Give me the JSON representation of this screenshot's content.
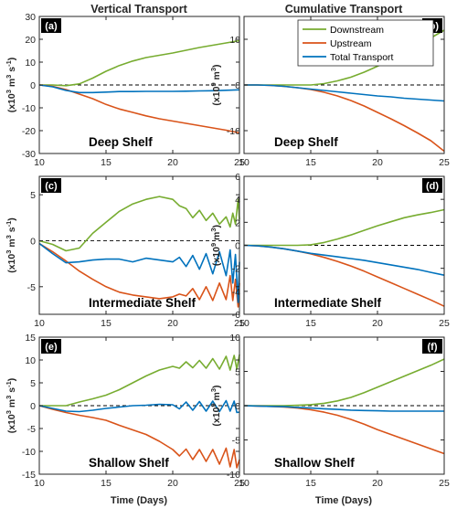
{
  "figure": {
    "col_titles": [
      "Vertical Transport",
      "Cumulative Transport"
    ],
    "xlabel": "Time (Days)",
    "legend": [
      "Downstream",
      "Upstream",
      "Total Transport"
    ]
  },
  "colors": {
    "downstream": "#77AC30",
    "upstream": "#D95319",
    "total": "#0072BD",
    "zero_line": "#000000",
    "frame": "#262626"
  },
  "chart_data": [
    {
      "type": "line",
      "panel": "(a)",
      "label": "Deep Shelf",
      "ylabel": "(x10^3 m^3 s^-1)",
      "xlim": [
        10,
        25
      ],
      "ylim": [
        -30,
        30
      ],
      "xticks": [
        10,
        15,
        20,
        25
      ],
      "yticks": [
        -30,
        -20,
        -10,
        0,
        10,
        20,
        30
      ],
      "x": [
        10,
        11,
        12,
        13,
        14,
        15,
        16,
        17,
        18,
        19,
        20,
        21,
        22,
        23,
        24,
        25
      ],
      "series": [
        {
          "name": "Downstream",
          "values": [
            0,
            0,
            -0.3,
            0.5,
            3,
            6,
            8.5,
            10.5,
            12,
            13,
            14,
            15.2,
            16.4,
            17.4,
            18.4,
            19.4
          ]
        },
        {
          "name": "Upstream",
          "values": [
            0,
            -0.6,
            -2,
            -4,
            -6,
            -8.5,
            -10.5,
            -12,
            -13.5,
            -14.8,
            -15.8,
            -16.8,
            -17.8,
            -18.8,
            -19.8,
            -21
          ]
        },
        {
          "name": "Total Transport",
          "values": [
            0,
            -0.8,
            -2.4,
            -3.3,
            -3.3,
            -3.1,
            -2.9,
            -2.9,
            -2.8,
            -2.8,
            -2.8,
            -2.7,
            -2.6,
            -2.5,
            -2.3,
            -2.1
          ]
        }
      ]
    },
    {
      "type": "line",
      "panel": "(b)",
      "label": "Deep Shelf",
      "ylabel": "(x10^9 m^3)",
      "xlim": [
        10,
        25
      ],
      "ylim": [
        -15,
        15
      ],
      "xticks": [
        10,
        15,
        20,
        25
      ],
      "yticks": [
        -10,
        0,
        10
      ],
      "x": [
        10,
        11,
        12,
        13,
        14,
        15,
        16,
        17,
        18,
        19,
        20,
        21,
        22,
        23,
        24,
        25
      ],
      "series": [
        {
          "name": "Downstream",
          "values": [
            0,
            0,
            0,
            0,
            0,
            0,
            0.3,
            0.9,
            1.7,
            2.8,
            4.1,
            5.6,
            7.1,
            8.7,
            10.3,
            12
          ]
        },
        {
          "name": "Upstream",
          "values": [
            0,
            0,
            -0.1,
            -0.3,
            -0.6,
            -1,
            -1.6,
            -2.4,
            -3.4,
            -4.6,
            -6,
            -7.4,
            -8.9,
            -10.5,
            -12.2,
            -14.5
          ]
        },
        {
          "name": "Total Transport",
          "values": [
            0,
            0,
            -0.1,
            -0.3,
            -0.6,
            -0.9,
            -1.2,
            -1.5,
            -1.8,
            -2.1,
            -2.4,
            -2.6,
            -2.9,
            -3.1,
            -3.3,
            -3.5
          ]
        }
      ]
    },
    {
      "type": "line",
      "panel": "(c)",
      "label": "Intermediate Shelf",
      "ylabel": "(x10^3 m^3 s^-1)",
      "xlim": [
        10,
        25
      ],
      "ylim": [
        -8,
        7
      ],
      "xticks": [
        10,
        15,
        20,
        25
      ],
      "yticks": [
        -5,
        0,
        5
      ],
      "x": [
        10,
        11,
        12,
        13,
        14,
        15,
        16,
        17,
        18,
        19,
        20,
        20.5,
        21,
        21.5,
        22,
        22.5,
        23,
        23.5,
        24,
        24.3,
        24.5,
        24.7,
        24.9,
        25
      ],
      "series": [
        {
          "name": "Downstream",
          "values": [
            0,
            -0.4,
            -1.1,
            -0.8,
            0.8,
            2,
            3.2,
            4,
            4.5,
            4.8,
            4.5,
            3.8,
            3.5,
            2.5,
            3.3,
            2.2,
            3,
            1.8,
            2.6,
            1.5,
            3,
            1.8,
            4.5,
            2.3
          ]
        },
        {
          "name": "Upstream",
          "values": [
            -0.3,
            -1.2,
            -2.2,
            -3.3,
            -4.2,
            -5,
            -5.6,
            -5.9,
            -6.1,
            -6.3,
            -6.1,
            -5.8,
            -6,
            -5.2,
            -6.4,
            -5,
            -6.5,
            -4.6,
            -6.4,
            -3.8,
            -6.5,
            -4.2,
            -7.2,
            -4.6
          ]
        },
        {
          "name": "Total Transport",
          "values": [
            -0.3,
            -1.4,
            -2.4,
            -2.3,
            -2.1,
            -2,
            -2,
            -2.3,
            -1.9,
            -2.1,
            -2.3,
            -1.8,
            -2.8,
            -1.6,
            -3.1,
            -1.4,
            -3.6,
            -1.2,
            -3.8,
            -1,
            -4.6,
            -1.5,
            -6.7,
            -2.3
          ]
        }
      ]
    },
    {
      "type": "line",
      "panel": "(d)",
      "label": "Intermediate Shelf",
      "ylabel": "(x10^9 m^3)",
      "xlim": [
        10,
        25
      ],
      "ylim": [
        -6,
        6
      ],
      "xticks": [
        10,
        15,
        20,
        25
      ],
      "yticks": [
        -6,
        -4,
        -2,
        0,
        2,
        4,
        6
      ],
      "x": [
        10,
        11,
        12,
        13,
        14,
        15,
        16,
        17,
        18,
        19,
        20,
        21,
        22,
        23,
        24,
        25
      ],
      "series": [
        {
          "name": "Downstream",
          "values": [
            0,
            0,
            0,
            0,
            0,
            0.05,
            0.25,
            0.55,
            0.9,
            1.3,
            1.7,
            2.05,
            2.4,
            2.65,
            2.85,
            3.1
          ]
        },
        {
          "name": "Upstream",
          "values": [
            0,
            -0.05,
            -0.15,
            -0.3,
            -0.5,
            -0.75,
            -1.05,
            -1.4,
            -1.8,
            -2.25,
            -2.75,
            -3.25,
            -3.75,
            -4.25,
            -4.75,
            -5.3
          ]
        },
        {
          "name": "Total Transport",
          "values": [
            0,
            -0.05,
            -0.15,
            -0.3,
            -0.5,
            -0.7,
            -0.85,
            -1,
            -1.15,
            -1.3,
            -1.5,
            -1.7,
            -1.9,
            -2.1,
            -2.35,
            -2.6
          ]
        }
      ]
    },
    {
      "type": "line",
      "panel": "(e)",
      "label": "Shallow Shelf",
      "ylabel": "(x10^3 m^3 s^-1)",
      "xlim": [
        10,
        25
      ],
      "ylim": [
        -15,
        15
      ],
      "xticks": [
        10,
        15,
        20,
        25
      ],
      "yticks": [
        -15,
        -10,
        -5,
        0,
        5,
        10,
        15
      ],
      "x": [
        10,
        11,
        12,
        13,
        14,
        15,
        16,
        17,
        18,
        19,
        20,
        20.5,
        21,
        21.5,
        22,
        22.5,
        23,
        23.5,
        24,
        24.3,
        24.6,
        24.8,
        25
      ],
      "series": [
        {
          "name": "Downstream",
          "values": [
            0,
            0,
            0,
            0.8,
            1.5,
            2.3,
            3.5,
            5,
            6.5,
            7.8,
            8.6,
            8.2,
            9.6,
            8.3,
            9.9,
            8.2,
            10.3,
            8,
            10.8,
            7.8,
            11,
            8,
            11.2
          ]
        },
        {
          "name": "Upstream",
          "values": [
            0,
            -0.8,
            -1.5,
            -2.1,
            -2.6,
            -3.2,
            -4.3,
            -5.3,
            -6.3,
            -7.8,
            -9.6,
            -11,
            -9.5,
            -11.8,
            -9.6,
            -12.2,
            -9.6,
            -12.8,
            -9.3,
            -13.4,
            -9.6,
            -13.6,
            -11.8
          ]
        },
        {
          "name": "Total Transport",
          "values": [
            0,
            -0.6,
            -1.2,
            -1.3,
            -1,
            -0.6,
            -0.3,
            0,
            0.1,
            0.3,
            0.2,
            -0.7,
            0.8,
            -1,
            0.9,
            -1.2,
            1,
            -1.3,
            1.1,
            -1.2,
            1,
            -1.5,
            -1.4
          ]
        }
      ]
    },
    {
      "type": "line",
      "panel": "(f)",
      "label": "Shallow Shelf",
      "ylabel": "(x10^9 m^3)",
      "xlim": [
        10,
        25
      ],
      "ylim": [
        -10,
        10
      ],
      "xticks": [
        10,
        15,
        20,
        25
      ],
      "yticks": [
        -10,
        -5,
        0,
        5,
        10
      ],
      "x": [
        10,
        11,
        12,
        13,
        14,
        15,
        16,
        17,
        18,
        19,
        20,
        21,
        22,
        23,
        24,
        25
      ],
      "series": [
        {
          "name": "Downstream",
          "values": [
            0,
            0,
            0,
            0,
            0.05,
            0.15,
            0.35,
            0.7,
            1.2,
            1.9,
            2.7,
            3.5,
            4.3,
            5.1,
            5.9,
            6.8
          ]
        },
        {
          "name": "Upstream",
          "values": [
            0,
            -0.05,
            -0.1,
            -0.2,
            -0.35,
            -0.6,
            -0.95,
            -1.4,
            -2,
            -2.7,
            -3.5,
            -4.2,
            -4.9,
            -5.6,
            -6.3,
            -7
          ]
        },
        {
          "name": "Total Transport",
          "values": [
            0,
            -0.05,
            -0.1,
            -0.15,
            -0.25,
            -0.35,
            -0.45,
            -0.55,
            -0.65,
            -0.7,
            -0.75,
            -0.8,
            -0.8,
            -0.8,
            -0.8,
            -0.8
          ]
        }
      ]
    }
  ]
}
